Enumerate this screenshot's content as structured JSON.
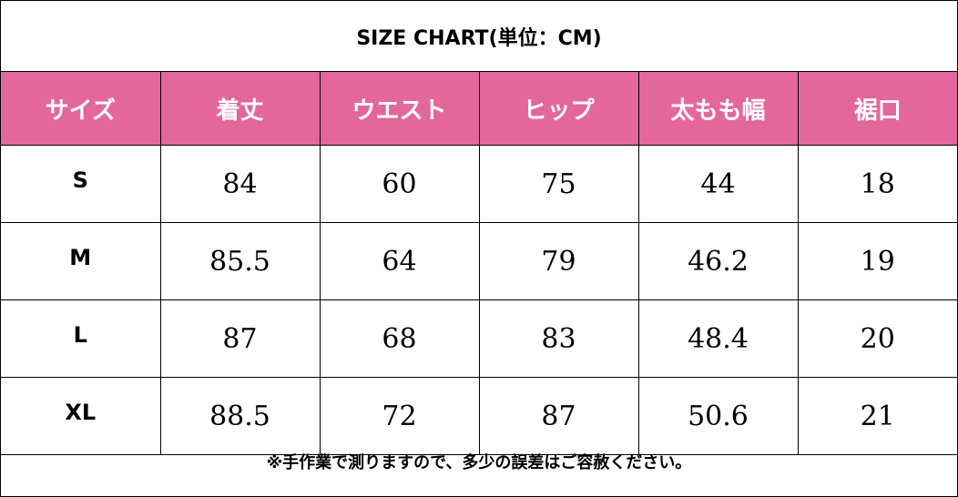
{
  "title": "SIZE CHART(単位：CM)",
  "colors": {
    "header_bg": "#e4679c",
    "header_text": "#ffffff",
    "border": "#000000"
  },
  "headers": [
    "サイズ",
    "着丈",
    "ウエスト",
    "ヒップ",
    "太もも幅",
    "裾口"
  ],
  "rows": [
    {
      "size": "S",
      "values": [
        "84",
        "60",
        "75",
        "44",
        "18"
      ]
    },
    {
      "size": "M",
      "values": [
        "85.5",
        "64",
        "79",
        "46.2",
        "19"
      ]
    },
    {
      "size": "L",
      "values": [
        "87",
        "68",
        "83",
        "48.4",
        "20"
      ]
    },
    {
      "size": "XL",
      "values": [
        "88.5",
        "72",
        "87",
        "50.6",
        "21"
      ]
    }
  ],
  "note": "※手作業で測りますので、多少の誤差はご容赦ください。"
}
